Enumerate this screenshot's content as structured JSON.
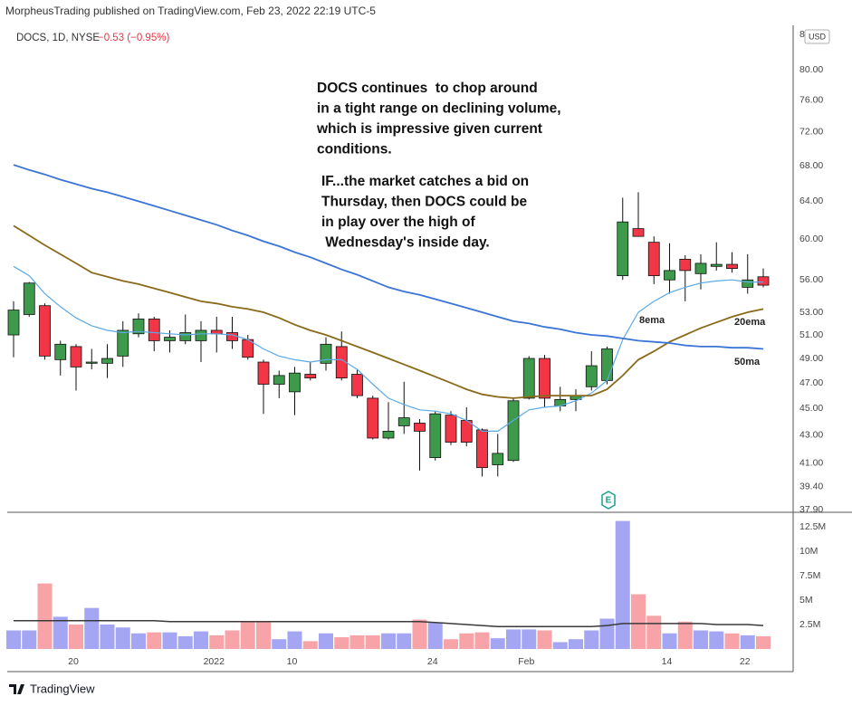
{
  "page": {
    "published": "MorpheusTrading published on TradingView.com, Feb 23, 2022 22:19 UTC-5",
    "brand": "TradingView"
  },
  "chart_data": [
    {
      "type": "candlestick",
      "symbol": "DOCS, 1D, NYSE",
      "change": "−0.53 (−0.95%)",
      "currency": "USD",
      "earnings_marker": "E",
      "categories": [
        null,
        null,
        null,
        null,
        "20",
        null,
        null,
        null,
        null,
        null,
        null,
        null,
        null,
        "2022",
        null,
        null,
        null,
        null,
        "10",
        null,
        null,
        null,
        null,
        null,
        null,
        null,
        null,
        "24",
        null,
        null,
        null,
        null,
        null,
        "Feb",
        null,
        null,
        null,
        null,
        null,
        null,
        null,
        null,
        "14",
        null,
        null,
        null,
        null,
        "22",
        null
      ],
      "open": [
        51.0,
        52.8,
        53.6,
        48.9,
        50.0,
        48.6,
        48.6,
        49.2,
        51.1,
        52.4,
        50.5,
        50.5,
        50.5,
        51.4,
        51.2,
        50.6,
        48.7,
        46.9,
        46.3,
        47.7,
        48.6,
        50.0,
        47.7,
        45.8,
        42.8,
        43.7,
        43.9,
        41.4,
        44.5,
        44.1,
        43.4,
        40.9,
        41.2,
        45.8,
        49.0,
        45.2,
        45.7,
        46.7,
        47.2,
        56.4,
        61.1,
        59.7,
        56.0,
        58.0,
        56.6,
        57.3,
        57.5,
        55.3,
        56.3
      ],
      "high": [
        54.0,
        55.8,
        53.8,
        50.5,
        50.2,
        49.8,
        50.2,
        52.2,
        52.9,
        52.6,
        51.4,
        52.8,
        52.2,
        52.6,
        52.6,
        51.0,
        48.9,
        48.0,
        48.3,
        48.7,
        50.8,
        51.3,
        48.1,
        46.0,
        45.5,
        47.1,
        44.2,
        44.8,
        44.8,
        45.1,
        43.5,
        43.1,
        45.8,
        49.2,
        49.3,
        46.7,
        46.5,
        49.6,
        50.0,
        64.4,
        65.0,
        60.3,
        59.6,
        58.4,
        58.5,
        59.7,
        58.7,
        58.5,
        57.1
      ],
      "low": [
        49.1,
        52.6,
        48.9,
        47.6,
        46.4,
        48.1,
        47.4,
        48.3,
        50.8,
        49.6,
        49.5,
        50.2,
        48.7,
        49.5,
        49.8,
        48.9,
        44.6,
        45.8,
        44.5,
        47.2,
        48.0,
        47.2,
        45.8,
        42.7,
        42.7,
        43.1,
        40.5,
        41.2,
        42.3,
        42.2,
        40.1,
        40.1,
        41.1,
        45.7,
        45.1,
        44.8,
        44.8,
        46.4,
        46.9,
        56.0,
        60.3,
        55.6,
        54.7,
        54.0,
        55.1,
        56.9,
        56.7,
        54.7,
        55.3
      ],
      "close": [
        53.2,
        55.7,
        49.2,
        50.2,
        48.3,
        48.7,
        49.0,
        51.4,
        52.4,
        50.5,
        50.8,
        51.2,
        51.4,
        51.1,
        50.5,
        49.1,
        46.9,
        47.6,
        47.8,
        47.4,
        50.2,
        47.4,
        46.0,
        42.8,
        43.3,
        44.3,
        43.3,
        44.6,
        42.5,
        42.5,
        40.7,
        41.7,
        45.6,
        49.0,
        45.8,
        45.7,
        46.0,
        48.4,
        49.8,
        61.8,
        60.3,
        56.4,
        56.9,
        56.9,
        57.6,
        57.5,
        57.1,
        56.0,
        55.5
      ],
      "up_color": "#3d9a4a",
      "down_color": "#f23645",
      "series": [
        {
          "name": "8ema",
          "color": "#5aa9e6",
          "values": [
            57.3,
            56.4,
            54.7,
            53.5,
            52.5,
            51.8,
            51.4,
            51.2,
            51.3,
            51.2,
            51.1,
            51.0,
            51.1,
            51.1,
            51.0,
            50.6,
            49.8,
            49.2,
            48.9,
            48.7,
            48.9,
            48.9,
            48.1,
            46.9,
            45.8,
            45.3,
            44.9,
            44.8,
            44.6,
            44.1,
            43.3,
            43.3,
            44.1,
            44.9,
            45.1,
            45.2,
            45.6,
            46.2,
            47.2,
            50.6,
            53.0,
            54.0,
            54.8,
            55.3,
            55.7,
            55.9,
            56.0,
            55.8,
            55.8
          ]
        },
        {
          "name": "20ema",
          "color": "#8a6a1a",
          "values": [
            61.4,
            60.4,
            59.4,
            58.5,
            57.6,
            56.7,
            56.3,
            55.9,
            55.6,
            55.2,
            54.8,
            54.4,
            54.0,
            53.8,
            53.5,
            53.3,
            53.0,
            52.5,
            51.9,
            51.4,
            51.0,
            50.5,
            50.0,
            49.5,
            49.0,
            48.5,
            48.0,
            47.5,
            47.0,
            46.5,
            46.1,
            45.9,
            45.8,
            45.9,
            46.0,
            46.0,
            46.0,
            46.0,
            46.5,
            47.6,
            48.9,
            49.6,
            50.4,
            51.0,
            51.6,
            52.1,
            52.6,
            53.0,
            53.3
          ]
        },
        {
          "name": "50ma",
          "color": "#3a74d6",
          "values": [
            68.1,
            67.5,
            67.0,
            66.4,
            65.9,
            65.4,
            65.0,
            64.5,
            64.0,
            63.5,
            63.0,
            62.5,
            62.0,
            61.5,
            60.9,
            60.4,
            59.8,
            59.3,
            58.7,
            58.2,
            57.6,
            57.0,
            56.5,
            55.9,
            55.3,
            54.9,
            54.6,
            54.2,
            53.8,
            53.4,
            53.0,
            52.6,
            52.2,
            52.0,
            51.7,
            51.5,
            51.2,
            51.0,
            50.9,
            50.7,
            50.5,
            50.4,
            50.3,
            50.1,
            50.0,
            50.0,
            49.9,
            49.9,
            49.8
          ]
        }
      ],
      "log_scale": true,
      "grid": false,
      "ylim": [
        37.9,
        85
      ],
      "yticks": [
        {
          "value": 37.9,
          "label": "37.90"
        },
        {
          "value": 39.4,
          "label": "39.40"
        },
        {
          "value": 41,
          "label": "41.00"
        },
        {
          "value": 43,
          "label": "43.00"
        },
        {
          "value": 45,
          "label": "45.00"
        },
        {
          "value": 47,
          "label": "47.00"
        },
        {
          "value": 49,
          "label": "49.00"
        },
        {
          "value": 51,
          "label": "51.00"
        },
        {
          "value": 53,
          "label": "53.00"
        },
        {
          "value": 56,
          "label": "56.00"
        },
        {
          "value": 60,
          "label": "60.00"
        },
        {
          "value": 64,
          "label": "64.00"
        },
        {
          "value": 68,
          "label": "68.00"
        },
        {
          "value": 72,
          "label": "72.00"
        },
        {
          "value": 76,
          "label": "76.00"
        },
        {
          "value": 80,
          "label": "80.00"
        },
        {
          "value": 85,
          "label": "85.00"
        }
      ],
      "annotations": [
        {
          "lines": [
            "DOCS continues  to chop around",
            "in a tight range on declining volume,",
            "which is impressive given current",
            "conditions."
          ]
        },
        {
          "lines": [
            "IF...the market catches a bid on",
            "Thursday, then DOCS could be",
            "in play over the high of",
            " Wednesday's inside day."
          ]
        }
      ]
    },
    {
      "type": "bar",
      "values": [
        1900000,
        1900000,
        6700000,
        3300000,
        2500000,
        4200000,
        2500000,
        2200000,
        1600000,
        1700000,
        1700000,
        1300000,
        1800000,
        1400000,
        1900000,
        2800000,
        2800000,
        1000000,
        1800000,
        800000,
        1600000,
        1200000,
        1400000,
        1400000,
        1600000,
        1600000,
        3000000,
        2700000,
        1000000,
        1600000,
        1700000,
        1100000,
        2000000,
        2000000,
        1900000,
        700000,
        1000000,
        1900000,
        3100000,
        13100000,
        5600000,
        3400000,
        1600000,
        2800000,
        1900000,
        1800000,
        1600000,
        1400000,
        1300000
      ],
      "up_color": "#a4a6f4",
      "down_color": "#f8a3a8",
      "series": [
        {
          "color": "#3a3a3a",
          "values": [
            2900000,
            2900000,
            2900000,
            2900000,
            2900000,
            2900000,
            2900000,
            2900000,
            2900000,
            2900000,
            2800000,
            2800000,
            2800000,
            2800000,
            2800000,
            2800000,
            2800000,
            2800000,
            2800000,
            2800000,
            2800000,
            2800000,
            2800000,
            2800000,
            2800000,
            2800000,
            2800000,
            2700000,
            2600000,
            2500000,
            2400000,
            2300000,
            2300000,
            2300000,
            2300000,
            2300000,
            2300000,
            2300000,
            2400000,
            2600000,
            2600000,
            2600000,
            2600000,
            2600000,
            2600000,
            2500000,
            2500000,
            2500000,
            2400000
          ]
        }
      ],
      "ylim": [
        0,
        13800000
      ],
      "yticks": [
        {
          "value": 2500000,
          "label": "2.5M"
        },
        {
          "value": 5000000,
          "label": "5M"
        },
        {
          "value": 7500000,
          "label": "7.5M"
        },
        {
          "value": 10000000,
          "label": "10M"
        },
        {
          "value": 12500000,
          "label": "12.5M"
        }
      ]
    }
  ]
}
